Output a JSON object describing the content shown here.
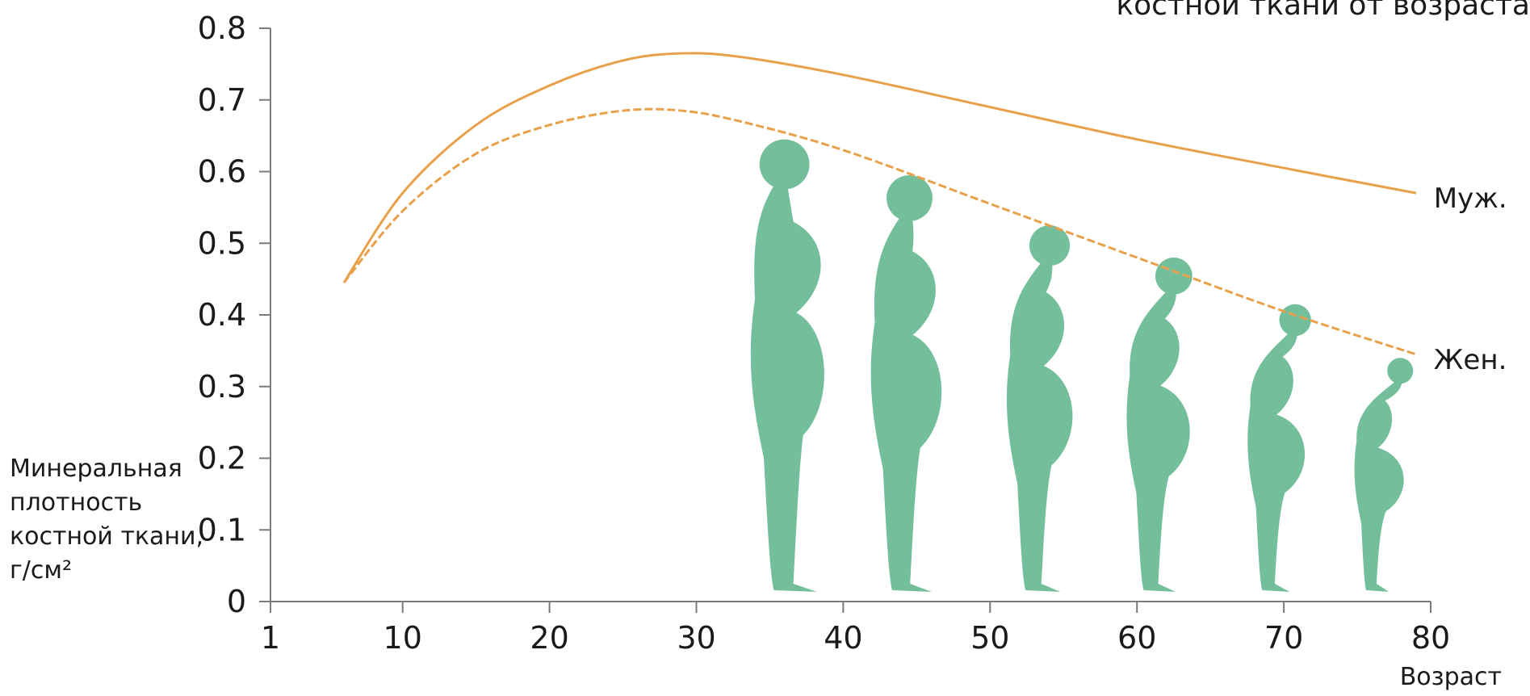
{
  "chart_data": {
    "type": "line",
    "title": "костной ткани от возраста",
    "ylabel": [
      "Минеральная",
      "плотность",
      "костной ткани,",
      "г/см²"
    ],
    "xlabel": "Возраст",
    "xlim": [
      1,
      80
    ],
    "ylim": [
      0,
      0.8
    ],
    "x_ticks": [
      1,
      10,
      20,
      30,
      40,
      50,
      60,
      70,
      80
    ],
    "y_ticks": [
      "0",
      "0.1",
      "0.2",
      "0.3",
      "0.4",
      "0.5",
      "0.6",
      "0.7",
      "0.8"
    ],
    "grid": false,
    "series": [
      {
        "name": "Муж.",
        "color": "#e8a14a",
        "style": "solid",
        "x": [
          6,
          10,
          15,
          20,
          25,
          29,
          33,
          40,
          50,
          60,
          70,
          79
        ],
        "y": [
          0.445,
          0.57,
          0.665,
          0.72,
          0.755,
          0.765,
          0.76,
          0.735,
          0.69,
          0.645,
          0.605,
          0.57
        ]
      },
      {
        "name": "Жен.",
        "color": "#e8a14a",
        "style": "dashed",
        "x": [
          6,
          10,
          15,
          20,
          25,
          29,
          33,
          40,
          50,
          60,
          70,
          79
        ],
        "y": [
          0.445,
          0.545,
          0.625,
          0.665,
          0.685,
          0.685,
          0.67,
          0.63,
          0.555,
          0.48,
          0.405,
          0.345
        ]
      }
    ],
    "figures": [
      {
        "age": 36,
        "height": 0.645,
        "stoop": 0.0
      },
      {
        "age": 44,
        "height": 0.595,
        "stoop": 0.15
      },
      {
        "age": 53,
        "height": 0.525,
        "stoop": 0.35
      },
      {
        "age": 61,
        "height": 0.48,
        "stoop": 0.55
      },
      {
        "age": 69,
        "height": 0.415,
        "stoop": 0.75
      },
      {
        "age": 76,
        "height": 0.34,
        "stoop": 1.0
      }
    ]
  }
}
